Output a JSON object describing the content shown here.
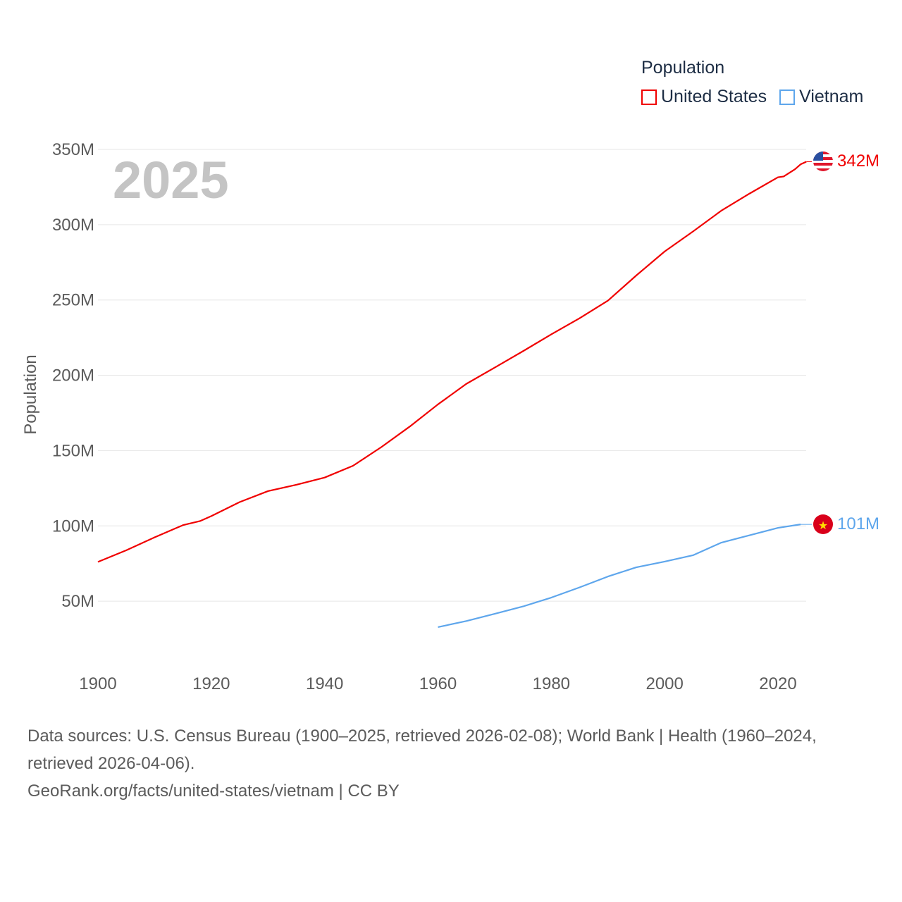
{
  "legend": {
    "title": "Population",
    "items": [
      {
        "label": "United States",
        "color": "#f00000"
      },
      {
        "label": "Vietnam",
        "color": "#5ea6ec"
      }
    ]
  },
  "year_label": "2025",
  "end_labels": {
    "us": "342M",
    "vn": "101M"
  },
  "footer": {
    "sources": "Data sources: U.S. Census Bureau (1900–2025, retrieved 2026-02-08); World Bank | Health (1960–2024, retrieved 2026-04-06).",
    "link": "GeoRank.org/facts/united-states/vietnam | CC BY"
  },
  "chart_data": {
    "type": "line",
    "title": "Population",
    "xlabel": "",
    "ylabel": "Population",
    "xlim": [
      1900,
      2025
    ],
    "ylim": [
      0,
      350
    ],
    "xticks": [
      1900,
      1920,
      1940,
      1960,
      1980,
      2000,
      2020
    ],
    "yticks": [
      50,
      100,
      150,
      200,
      250,
      300,
      350
    ],
    "ytick_labels": [
      "50M",
      "100M",
      "150M",
      "200M",
      "250M",
      "300M",
      "350M"
    ],
    "grid": true,
    "legend_position": "top-right",
    "series": [
      {
        "name": "United States",
        "color": "#f00000",
        "x": [
          1900,
          1905,
          1910,
          1915,
          1918,
          1920,
          1925,
          1930,
          1935,
          1940,
          1945,
          1950,
          1955,
          1960,
          1965,
          1970,
          1975,
          1980,
          1985,
          1990,
          1995,
          2000,
          2005,
          2010,
          2015,
          2020,
          2021,
          2023,
          2024,
          2025
        ],
        "y": [
          76.1,
          83.8,
          92.4,
          100.5,
          103.2,
          106.5,
          115.8,
          123.1,
          127.3,
          132.1,
          139.9,
          152.3,
          165.9,
          180.7,
          194.3,
          205.1,
          216.0,
          227.2,
          237.9,
          249.6,
          266.3,
          282.2,
          295.5,
          309.3,
          320.7,
          331.5,
          332.0,
          336.8,
          340.1,
          341.8
        ]
      },
      {
        "name": "Vietnam",
        "color": "#5ea6ec",
        "x": [
          1960,
          1965,
          1970,
          1975,
          1980,
          1985,
          1990,
          1995,
          2000,
          2005,
          2010,
          2015,
          2020,
          2024
        ],
        "y": [
          32.8,
          36.8,
          41.6,
          46.5,
          52.4,
          59.2,
          66.4,
          72.5,
          76.3,
          80.5,
          88.9,
          93.8,
          98.7,
          101.0
        ]
      }
    ]
  }
}
